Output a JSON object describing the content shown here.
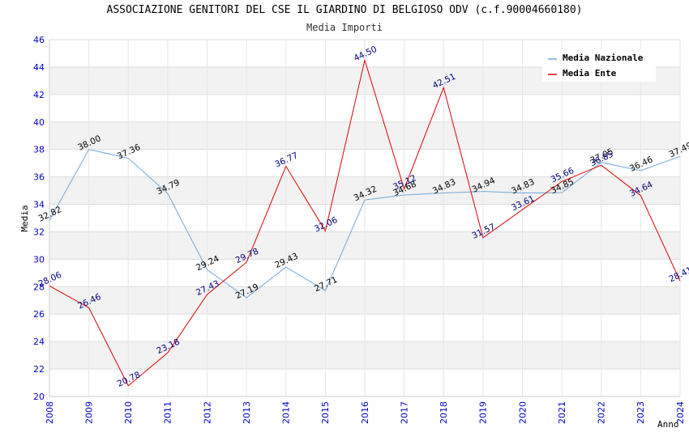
{
  "chart_data": {
    "type": "line",
    "title": "ASSOCIAZIONE GENITORI DEL CSE IL GIARDINO DI BELGIOSO ODV (c.f.90004660180)",
    "subtitle": "Media Importi",
    "xlabel": "Anno",
    "ylabel": "Media",
    "ylim": [
      20,
      46
    ],
    "yticks": [
      "20",
      "22",
      "24",
      "26",
      "28",
      "30",
      "32",
      "34",
      "36",
      "38",
      "40",
      "42",
      "44",
      "46"
    ],
    "x": [
      "2008",
      "2009",
      "2010",
      "2011",
      "2012",
      "2013",
      "2014",
      "2015",
      "2016",
      "2017",
      "2018",
      "2019",
      "2020",
      "2021",
      "2022",
      "2023",
      "2024"
    ],
    "grid": true,
    "legend_position": "top-right",
    "series": [
      {
        "name": "Media Nazionale",
        "color": "#6fa8dc",
        "values": [
          32.82,
          38.0,
          37.36,
          34.79,
          29.24,
          27.19,
          29.43,
          27.71,
          34.32,
          34.68,
          34.83,
          34.94,
          34.83,
          34.85,
          37.05,
          36.46,
          37.49
        ],
        "labels": [
          "32.82",
          "38.00",
          "37.36",
          "34.79",
          "29.24",
          "27.19",
          "29.43",
          "27.71",
          "34.32",
          "34.68",
          "34.83",
          "34.94",
          "34.83",
          "34.85",
          "37.05",
          "36.46",
          "37.49"
        ]
      },
      {
        "name": "Media Ente",
        "color": "#e00000",
        "values": [
          28.06,
          26.46,
          20.78,
          23.18,
          27.43,
          29.78,
          36.77,
          32.06,
          44.5,
          35.12,
          42.51,
          31.57,
          33.61,
          35.66,
          36.85,
          34.64,
          28.41
        ],
        "labels": [
          "28.06",
          "26.46",
          "20.78",
          "23.18",
          "27.43",
          "29.78",
          "36.77",
          "32.06",
          "44.50",
          "35.12",
          "42.51",
          "31.57",
          "33.61",
          "35.66",
          "36.85",
          "34.64",
          "28.41"
        ]
      }
    ]
  }
}
